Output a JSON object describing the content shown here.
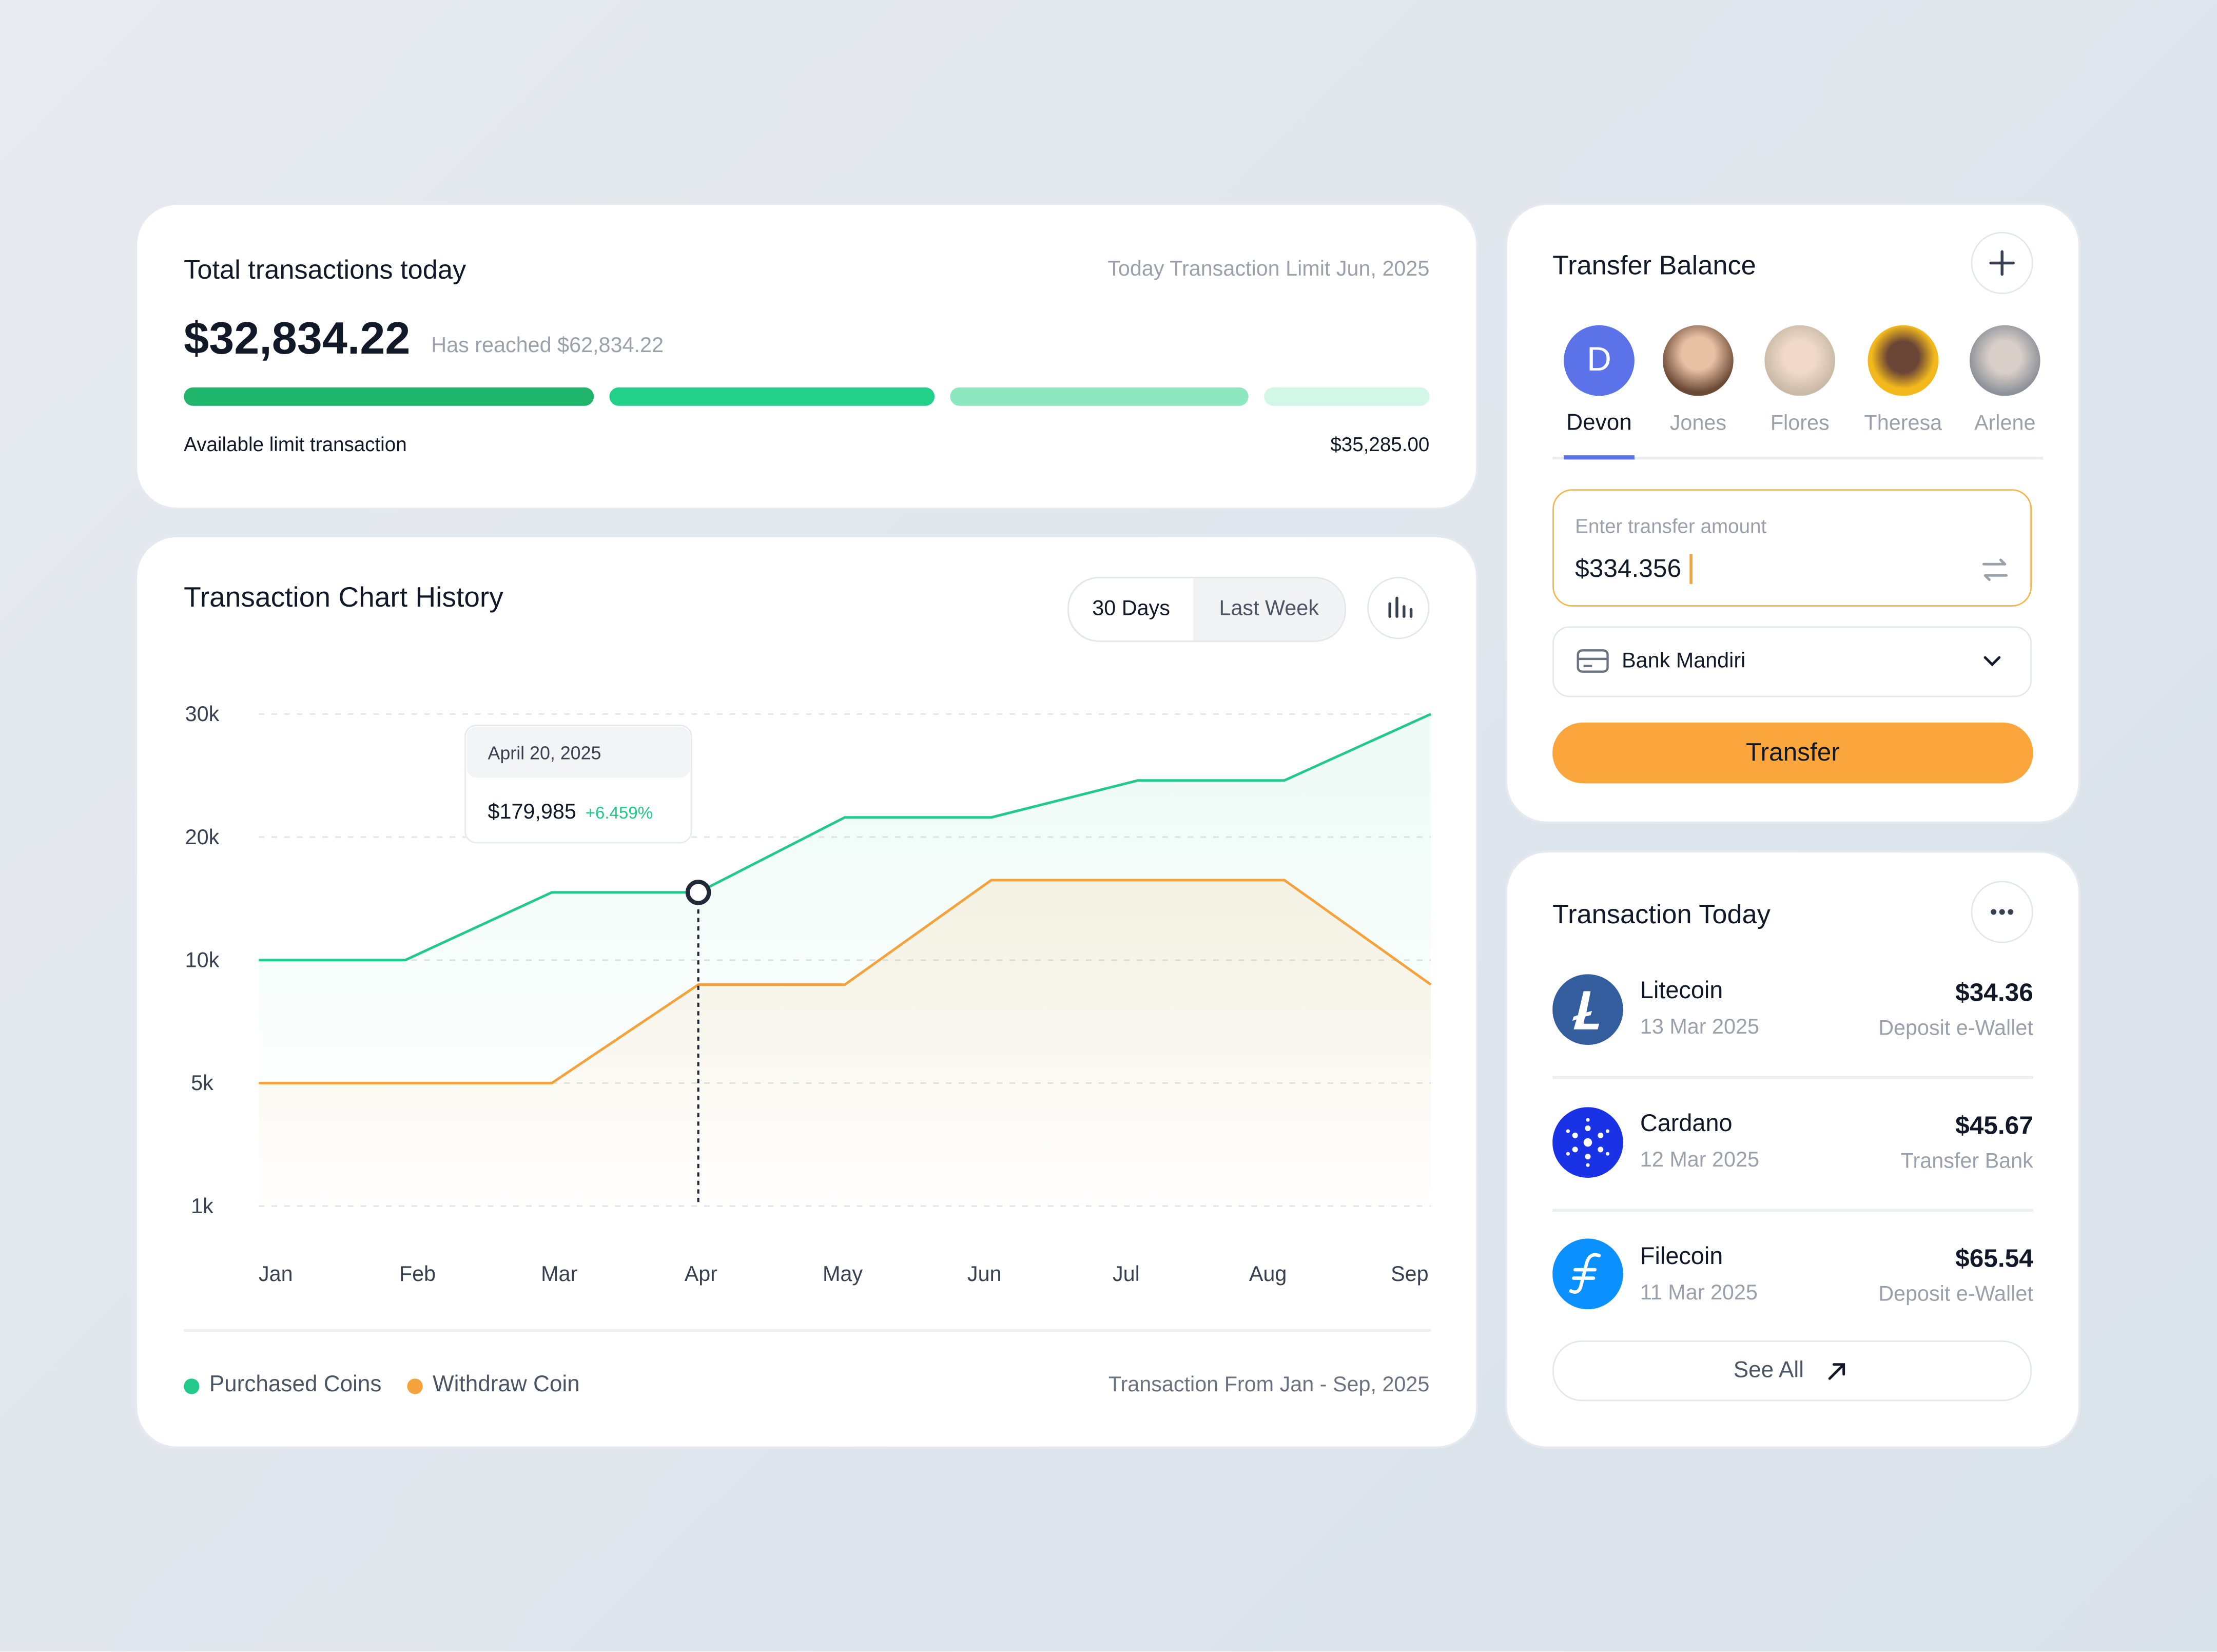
{
  "summary": {
    "title": "Total transactions today",
    "limit_label": "Today Transaction Limit Jun, 2025",
    "amount": "$32,834.22",
    "reached": "Has reached $62,834.22",
    "available_label": "Available limit transaction",
    "available_value": "$35,285.00"
  },
  "chart_data": {
    "type": "line",
    "title": "Transaction Chart History",
    "buttons": [
      "30 Days",
      "Last Week"
    ],
    "categories": [
      "Jan",
      "Feb",
      "Mar",
      "Apr",
      "May",
      "Jun",
      "Jul",
      "Aug",
      "Sep"
    ],
    "ylim": [
      1000,
      30000
    ],
    "yticks": [
      {
        "value": 1000,
        "label": "1k"
      },
      {
        "value": 5000,
        "label": "5k"
      },
      {
        "value": 10000,
        "label": "10k"
      },
      {
        "value": 20000,
        "label": "20k"
      },
      {
        "value": 30000,
        "label": "30k"
      }
    ],
    "grid": true,
    "series": [
      {
        "name": "Purchased Coins",
        "color": "#22c98a",
        "values": [
          10000,
          10000,
          15500,
          15500,
          21600,
          21600,
          24600,
          24600,
          30000
        ]
      },
      {
        "name": "Withdraw Coin",
        "color": "#f6a23c",
        "values": [
          5000,
          5000,
          5000,
          9000,
          9000,
          16500,
          16500,
          16500,
          9000
        ]
      }
    ],
    "tooltip": {
      "date": "April 20, 2025",
      "value": "$179,985",
      "change": "+6.459%"
    },
    "footer": "Transaction From Jan - Sep, 2025"
  },
  "transfer": {
    "title": "Transfer Balance",
    "contacts": [
      {
        "initial": "D",
        "name": "Devon"
      },
      {
        "name": "Jones"
      },
      {
        "name": "Flores"
      },
      {
        "name": "Theresa"
      },
      {
        "name": "Arlene"
      }
    ],
    "input_label": "Enter transfer amount",
    "input_value": "$334.356",
    "bank": "Bank Mandiri",
    "button": "Transfer"
  },
  "today": {
    "title": "Transaction Today",
    "items": [
      {
        "name": "Litecoin",
        "date": "13 Mar 2025",
        "amount": "$34.36",
        "kind": "Deposit e-Wallet"
      },
      {
        "name": "Cardano",
        "date": "12 Mar 2025",
        "amount": "$45.67",
        "kind": "Transfer Bank"
      },
      {
        "name": "Filecoin",
        "date": "11 Mar 2025",
        "amount": "$65.54",
        "kind": "Deposit e-Wallet"
      }
    ],
    "see_all": "See All"
  }
}
